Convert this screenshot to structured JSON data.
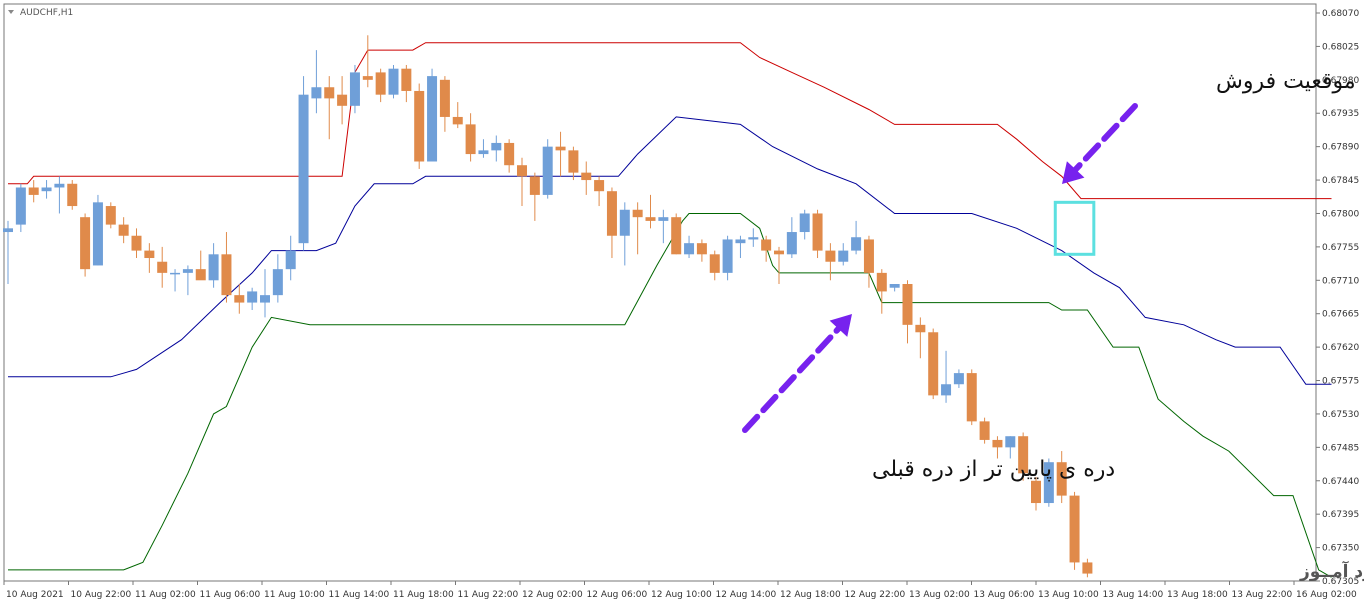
{
  "chart_data": {
    "type": "candlestick",
    "symbol": "AUDCHF,H1",
    "ylim": [
      0.67305,
      0.6807
    ],
    "y_ticks": [
      "0.68070",
      "0.68025",
      "0.67980",
      "0.67935",
      "0.67890",
      "0.67845",
      "0.67800",
      "0.67755",
      "0.67710",
      "0.67665",
      "0.67620",
      "0.67575",
      "0.67530",
      "0.67485",
      "0.67440",
      "0.67395",
      "0.67350",
      "0.67305"
    ],
    "x_ticks": [
      "10 Aug 2021",
      "10 Aug 22:00",
      "11 Aug 02:00",
      "11 Aug 06:00",
      "11 Aug 10:00",
      "11 Aug 14:00",
      "11 Aug 18:00",
      "11 Aug 22:00",
      "12 Aug 02:00",
      "12 Aug 06:00",
      "12 Aug 10:00",
      "12 Aug 14:00",
      "12 Aug 18:00",
      "12 Aug 22:00",
      "13 Aug 02:00",
      "13 Aug 06:00",
      "13 Aug 10:00",
      "13 Aug 14:00",
      "13 Aug 18:00",
      "13 Aug 22:00",
      "16 Aug 02:00"
    ],
    "colors": {
      "bull": "#6f9fd8",
      "bear": "#e08a4a",
      "upper": "#cc0000",
      "middle": "#000099",
      "lower": "#006600",
      "highlight": "#5ce0e0",
      "arrow": "#7722ee"
    },
    "candles": [
      {
        "o": 0.67775,
        "h": 0.6779,
        "l": 0.67705,
        "c": 0.6778
      },
      {
        "o": 0.67785,
        "h": 0.6784,
        "l": 0.67775,
        "c": 0.67835
      },
      {
        "o": 0.67835,
        "h": 0.67845,
        "l": 0.67815,
        "c": 0.67825
      },
      {
        "o": 0.6783,
        "h": 0.67845,
        "l": 0.6782,
        "c": 0.67835
      },
      {
        "o": 0.67835,
        "h": 0.6785,
        "l": 0.678,
        "c": 0.6784
      },
      {
        "o": 0.6784,
        "h": 0.67845,
        "l": 0.67805,
        "c": 0.6781
      },
      {
        "o": 0.67795,
        "h": 0.678,
        "l": 0.67715,
        "c": 0.67725
      },
      {
        "o": 0.6773,
        "h": 0.67825,
        "l": 0.6773,
        "c": 0.67815
      },
      {
        "o": 0.6781,
        "h": 0.67815,
        "l": 0.6778,
        "c": 0.67785
      },
      {
        "o": 0.67785,
        "h": 0.67795,
        "l": 0.6776,
        "c": 0.6777
      },
      {
        "o": 0.6777,
        "h": 0.6778,
        "l": 0.6774,
        "c": 0.6775
      },
      {
        "o": 0.6775,
        "h": 0.6776,
        "l": 0.6772,
        "c": 0.6774
      },
      {
        "o": 0.67735,
        "h": 0.67755,
        "l": 0.677,
        "c": 0.6772
      },
      {
        "o": 0.6772,
        "h": 0.67725,
        "l": 0.67695,
        "c": 0.6772
      },
      {
        "o": 0.6772,
        "h": 0.6773,
        "l": 0.6769,
        "c": 0.67725
      },
      {
        "o": 0.67725,
        "h": 0.6775,
        "l": 0.67715,
        "c": 0.6771
      },
      {
        "o": 0.6771,
        "h": 0.6776,
        "l": 0.677,
        "c": 0.67745
      },
      {
        "o": 0.67745,
        "h": 0.67775,
        "l": 0.6768,
        "c": 0.6769
      },
      {
        "o": 0.6769,
        "h": 0.67705,
        "l": 0.67665,
        "c": 0.6768
      },
      {
        "o": 0.6768,
        "h": 0.677,
        "l": 0.6767,
        "c": 0.67695
      },
      {
        "o": 0.6768,
        "h": 0.67725,
        "l": 0.6766,
        "c": 0.6769
      },
      {
        "o": 0.6769,
        "h": 0.67745,
        "l": 0.6768,
        "c": 0.67725
      },
      {
        "o": 0.67725,
        "h": 0.6777,
        "l": 0.6771,
        "c": 0.6775
      },
      {
        "o": 0.6776,
        "h": 0.67985,
        "l": 0.6775,
        "c": 0.6796
      },
      {
        "o": 0.67955,
        "h": 0.6802,
        "l": 0.67935,
        "c": 0.6797
      },
      {
        "o": 0.6797,
        "h": 0.67985,
        "l": 0.679,
        "c": 0.67955
      },
      {
        "o": 0.6796,
        "h": 0.67985,
        "l": 0.6792,
        "c": 0.67945
      },
      {
        "o": 0.67945,
        "h": 0.68,
        "l": 0.67935,
        "c": 0.6799
      },
      {
        "o": 0.67985,
        "h": 0.6804,
        "l": 0.6797,
        "c": 0.6798
      },
      {
        "o": 0.6799,
        "h": 0.67995,
        "l": 0.6795,
        "c": 0.6796
      },
      {
        "o": 0.6796,
        "h": 0.68,
        "l": 0.67955,
        "c": 0.67995
      },
      {
        "o": 0.67995,
        "h": 0.68,
        "l": 0.6795,
        "c": 0.67965
      },
      {
        "o": 0.67965,
        "h": 0.67975,
        "l": 0.6786,
        "c": 0.6787
      },
      {
        "o": 0.6787,
        "h": 0.67995,
        "l": 0.6787,
        "c": 0.67985
      },
      {
        "o": 0.6798,
        "h": 0.67985,
        "l": 0.6791,
        "c": 0.6793
      },
      {
        "o": 0.6793,
        "h": 0.6795,
        "l": 0.67915,
        "c": 0.6792
      },
      {
        "o": 0.6792,
        "h": 0.67935,
        "l": 0.6787,
        "c": 0.6788
      },
      {
        "o": 0.6788,
        "h": 0.679,
        "l": 0.67875,
        "c": 0.67885
      },
      {
        "o": 0.67885,
        "h": 0.67905,
        "l": 0.6787,
        "c": 0.67895
      },
      {
        "o": 0.67895,
        "h": 0.679,
        "l": 0.67855,
        "c": 0.67865
      },
      {
        "o": 0.67865,
        "h": 0.67875,
        "l": 0.6781,
        "c": 0.6785
      },
      {
        "o": 0.6785,
        "h": 0.67855,
        "l": 0.6779,
        "c": 0.67825
      },
      {
        "o": 0.67825,
        "h": 0.679,
        "l": 0.6782,
        "c": 0.6789
      },
      {
        "o": 0.6789,
        "h": 0.6791,
        "l": 0.6785,
        "c": 0.67885
      },
      {
        "o": 0.67885,
        "h": 0.6789,
        "l": 0.67845,
        "c": 0.67855
      },
      {
        "o": 0.67855,
        "h": 0.6787,
        "l": 0.67825,
        "c": 0.67845
      },
      {
        "o": 0.67845,
        "h": 0.6785,
        "l": 0.6781,
        "c": 0.6783
      },
      {
        "o": 0.6783,
        "h": 0.67835,
        "l": 0.6774,
        "c": 0.6777
      },
      {
        "o": 0.6777,
        "h": 0.67815,
        "l": 0.6773,
        "c": 0.67805
      },
      {
        "o": 0.67805,
        "h": 0.67815,
        "l": 0.67745,
        "c": 0.67795
      },
      {
        "o": 0.67795,
        "h": 0.67825,
        "l": 0.6778,
        "c": 0.6779
      },
      {
        "o": 0.6779,
        "h": 0.67805,
        "l": 0.6776,
        "c": 0.67795
      },
      {
        "o": 0.67795,
        "h": 0.678,
        "l": 0.67745,
        "c": 0.67745
      },
      {
        "o": 0.67745,
        "h": 0.6777,
        "l": 0.6774,
        "c": 0.6776
      },
      {
        "o": 0.6776,
        "h": 0.67765,
        "l": 0.67735,
        "c": 0.67745
      },
      {
        "o": 0.67745,
        "h": 0.6775,
        "l": 0.6771,
        "c": 0.6772
      },
      {
        "o": 0.6772,
        "h": 0.6777,
        "l": 0.6771,
        "c": 0.67765
      },
      {
        "o": 0.6776,
        "h": 0.6777,
        "l": 0.6774,
        "c": 0.67765
      },
      {
        "o": 0.67765,
        "h": 0.6778,
        "l": 0.67755,
        "c": 0.67768
      },
      {
        "o": 0.67765,
        "h": 0.6777,
        "l": 0.67735,
        "c": 0.6775
      },
      {
        "o": 0.6775,
        "h": 0.67755,
        "l": 0.67705,
        "c": 0.67745
      },
      {
        "o": 0.67745,
        "h": 0.67795,
        "l": 0.6774,
        "c": 0.67775
      },
      {
        "o": 0.67775,
        "h": 0.67805,
        "l": 0.67765,
        "c": 0.678
      },
      {
        "o": 0.678,
        "h": 0.67805,
        "l": 0.6774,
        "c": 0.6775
      },
      {
        "o": 0.6775,
        "h": 0.6776,
        "l": 0.6771,
        "c": 0.67735
      },
      {
        "o": 0.67735,
        "h": 0.6776,
        "l": 0.6773,
        "c": 0.6775
      },
      {
        "o": 0.6775,
        "h": 0.6779,
        "l": 0.67745,
        "c": 0.67768
      },
      {
        "o": 0.67765,
        "h": 0.6777,
        "l": 0.677,
        "c": 0.6772
      },
      {
        "o": 0.6772,
        "h": 0.67725,
        "l": 0.67665,
        "c": 0.67695
      },
      {
        "o": 0.677,
        "h": 0.67705,
        "l": 0.67695,
        "c": 0.67705
      },
      {
        "o": 0.67705,
        "h": 0.6771,
        "l": 0.67625,
        "c": 0.6765
      },
      {
        "o": 0.6765,
        "h": 0.6766,
        "l": 0.67605,
        "c": 0.6764
      },
      {
        "o": 0.6764,
        "h": 0.67645,
        "l": 0.6755,
        "c": 0.67555
      },
      {
        "o": 0.67555,
        "h": 0.67615,
        "l": 0.67545,
        "c": 0.6757
      },
      {
        "o": 0.6757,
        "h": 0.6759,
        "l": 0.67565,
        "c": 0.67585
      },
      {
        "o": 0.67585,
        "h": 0.6759,
        "l": 0.67515,
        "c": 0.6752
      },
      {
        "o": 0.6752,
        "h": 0.67525,
        "l": 0.6749,
        "c": 0.67495
      },
      {
        "o": 0.67495,
        "h": 0.675,
        "l": 0.6747,
        "c": 0.67485
      },
      {
        "o": 0.67485,
        "h": 0.675,
        "l": 0.6747,
        "c": 0.675
      },
      {
        "o": 0.675,
        "h": 0.67505,
        "l": 0.6744,
        "c": 0.6745
      },
      {
        "o": 0.6744,
        "h": 0.67445,
        "l": 0.674,
        "c": 0.6741
      },
      {
        "o": 0.6741,
        "h": 0.6747,
        "l": 0.67405,
        "c": 0.67465
      },
      {
        "o": 0.67465,
        "h": 0.6748,
        "l": 0.6741,
        "c": 0.6742
      },
      {
        "o": 0.6742,
        "h": 0.67425,
        "l": 0.6732,
        "c": 0.6733
      },
      {
        "o": 0.6733,
        "h": 0.67335,
        "l": 0.6731,
        "c": 0.67315
      }
    ],
    "upper_band": [
      [
        0.6784,
        0
      ],
      [
        0.6784,
        1.5
      ],
      [
        0.6785,
        2
      ],
      [
        0.6785,
        26
      ],
      [
        0.6799,
        27
      ],
      [
        0.6802,
        28
      ],
      [
        0.6802,
        31.5
      ],
      [
        0.6803,
        32.5
      ],
      [
        0.6803,
        57
      ],
      [
        0.6801,
        58.5
      ],
      [
        0.6799,
        61
      ],
      [
        0.6797,
        63.5
      ],
      [
        0.6794,
        67
      ],
      [
        0.6792,
        69
      ],
      [
        0.6792,
        77
      ],
      [
        0.679,
        78.5
      ],
      [
        0.6787,
        80.5
      ],
      [
        0.6785,
        82
      ],
      [
        0.6782,
        83.5
      ],
      [
        0.6782,
        103
      ]
    ],
    "middle_band": [
      [
        0.6758,
        0
      ],
      [
        0.6758,
        8
      ],
      [
        0.6759,
        10
      ],
      [
        0.6763,
        13.5
      ],
      [
        0.6768,
        16.5
      ],
      [
        0.6772,
        19
      ],
      [
        0.6775,
        20.5
      ],
      [
        0.6775,
        24
      ],
      [
        0.6776,
        25.5
      ],
      [
        0.6781,
        27
      ],
      [
        0.6784,
        28.5
      ],
      [
        0.6784,
        31.5
      ],
      [
        0.6785,
        32.5
      ],
      [
        0.6785,
        47.5
      ],
      [
        0.6788,
        49
      ],
      [
        0.6793,
        52
      ],
      [
        0.6792,
        57
      ],
      [
        0.6789,
        59.5
      ],
      [
        0.6786,
        63
      ],
      [
        0.6784,
        66
      ],
      [
        0.678,
        69
      ],
      [
        0.678,
        75
      ],
      [
        0.6778,
        78.5
      ],
      [
        0.6775,
        82
      ],
      [
        0.6772,
        84.5
      ],
      [
        0.677,
        86.5
      ],
      [
        0.6766,
        88.5
      ],
      [
        0.6765,
        91.5
      ],
      [
        0.6763,
        94
      ],
      [
        0.6762,
        95.5
      ],
      [
        0.6762,
        99
      ],
      [
        0.6757,
        101
      ],
      [
        0.6757,
        103
      ]
    ],
    "lower_band": [
      [
        0.6732,
        0
      ],
      [
        0.6732,
        9
      ],
      [
        0.6733,
        10.5
      ],
      [
        0.6738,
        12
      ],
      [
        0.6745,
        14
      ],
      [
        0.6753,
        16
      ],
      [
        0.6754,
        17
      ],
      [
        0.6762,
        19
      ],
      [
        0.6766,
        20.5
      ],
      [
        0.6765,
        23.5
      ],
      [
        0.6765,
        48
      ],
      [
        0.6773,
        50.5
      ],
      [
        0.6779,
        52.5
      ],
      [
        0.678,
        53
      ],
      [
        0.678,
        57
      ],
      [
        0.6778,
        58.5
      ],
      [
        0.6773,
        59.5
      ],
      [
        0.6772,
        60
      ],
      [
        0.6772,
        67
      ],
      [
        0.6768,
        68
      ],
      [
        0.6768,
        81
      ],
      [
        0.6767,
        82
      ],
      [
        0.6767,
        84
      ],
      [
        0.6762,
        86
      ],
      [
        0.6762,
        88
      ],
      [
        0.6755,
        89.5
      ],
      [
        0.6752,
        91.5
      ],
      [
        0.675,
        93
      ],
      [
        0.6748,
        95
      ],
      [
        0.6742,
        98.5
      ],
      [
        0.6742,
        100
      ],
      [
        0.6732,
        102
      ],
      [
        0.6731,
        103
      ]
    ],
    "highlight_box": {
      "index_from": 81.5,
      "index_to": 84.5,
      "y_top": 0.67815,
      "y_bottom": 0.67745
    },
    "annotations": [
      {
        "text": "موقعیت فروش",
        "role": "sell-position"
      },
      {
        "text": "دره ی پایین تر از دره قبلی",
        "role": "lower-low"
      }
    ],
    "watermark": "انتشار در وبسایت ســود آمــوز"
  }
}
